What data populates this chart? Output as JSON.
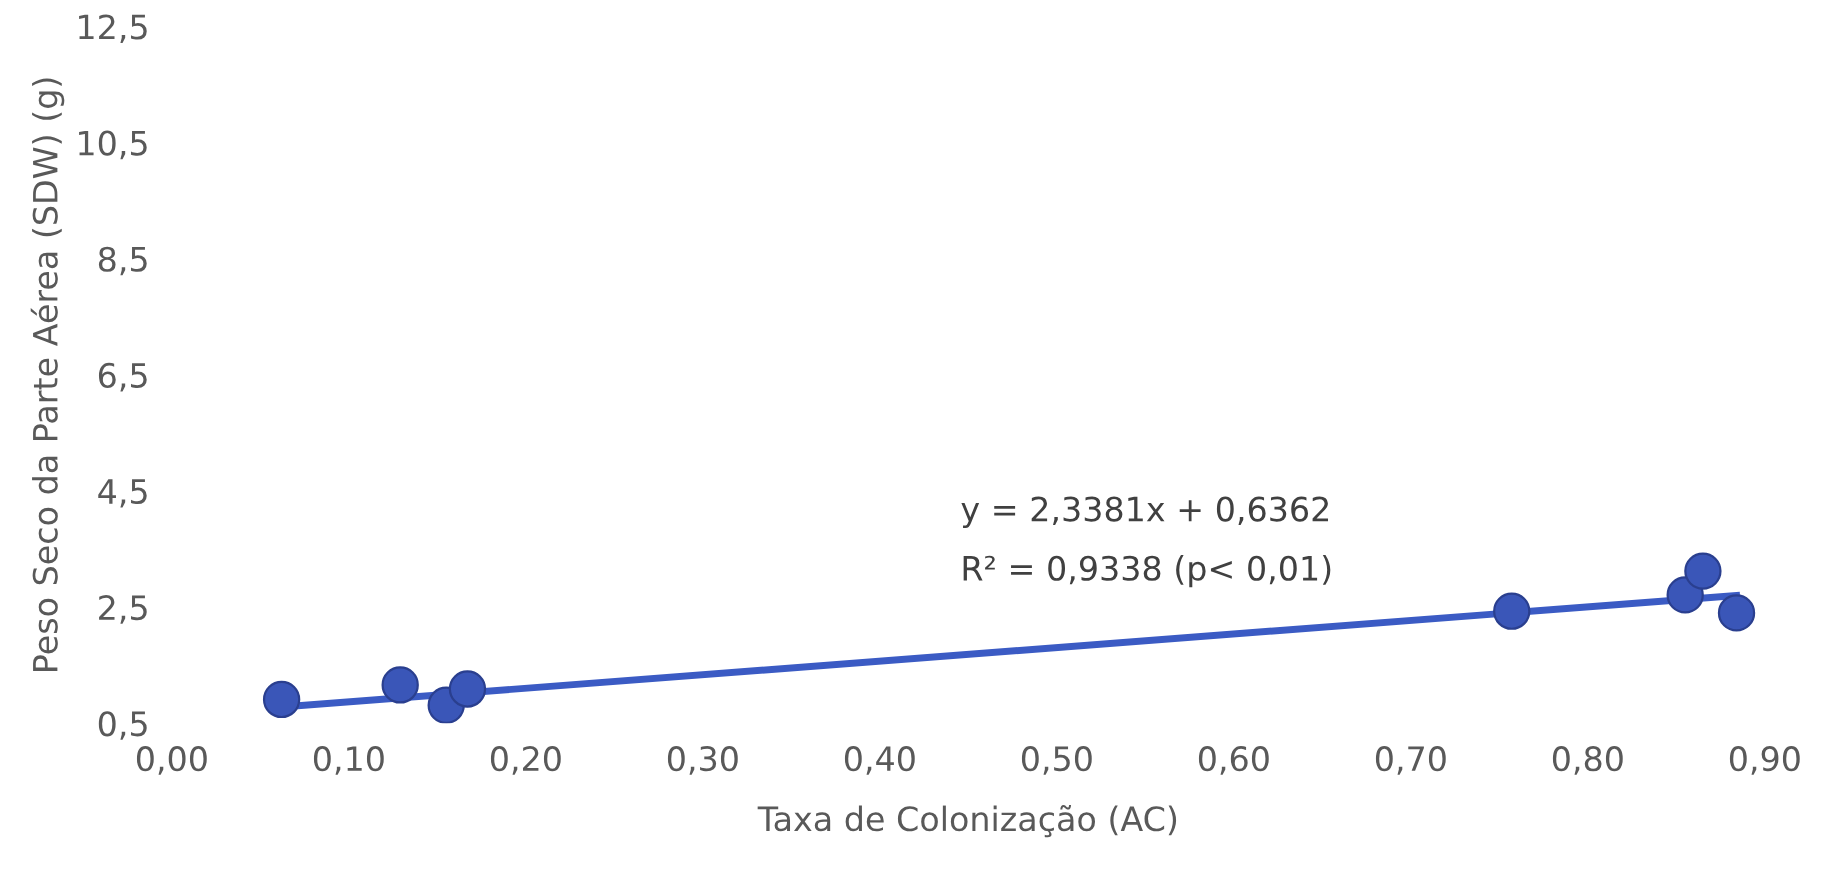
{
  "chart_data": {
    "type": "scatter",
    "xlabel": "Taxa de Colonização (AC)",
    "ylabel": "Peso Seco da Parte Aérea (SDW) (g)",
    "series": [
      {
        "color": "#3a56b8",
        "marker": "circle",
        "x": [
          0.062,
          0.129,
          0.155,
          0.167,
          0.757,
          0.855,
          0.865,
          0.884
        ],
        "values": [
          0.91,
          1.16,
          0.81,
          1.09,
          2.43,
          2.71,
          3.12,
          2.4
        ]
      },
      {
        "type": "line",
        "color": "#3b5bc4",
        "marker": "none",
        "x": [
          0.062,
          0.884
        ],
        "values": [
          0.78,
          2.7
        ]
      }
    ],
    "annotations": [
      "y = 2,3381x + 0,6362",
      "R² = 0,9338 (p< 0,01)"
    ],
    "xlim": [
      0.0,
      0.9
    ],
    "xticks": [
      {
        "value": 0,
        "label": "0,00"
      },
      {
        "value": 0.1,
        "label": "0,10"
      },
      {
        "value": 0.2,
        "label": "0,20"
      },
      {
        "value": 0.3,
        "label": "0,30"
      },
      {
        "value": 0.4,
        "label": "0,40"
      },
      {
        "value": 0.5,
        "label": "0,50"
      },
      {
        "value": 0.6,
        "label": "0,60"
      },
      {
        "value": 0.7,
        "label": "0,70"
      },
      {
        "value": 0.8,
        "label": "0,80"
      },
      {
        "value": 0.9,
        "label": "0,90"
      }
    ],
    "ylim": [
      0.5,
      12.5
    ],
    "yticks": [
      {
        "value": 0.5,
        "label": "0,5"
      },
      {
        "value": 2.5,
        "label": "2,5"
      },
      {
        "value": 4.5,
        "label": "4,5"
      },
      {
        "value": 6.5,
        "label": "6,5"
      },
      {
        "value": 8.5,
        "label": "8,5"
      },
      {
        "value": 10.5,
        "label": "10,5"
      },
      {
        "value": 12.5,
        "label": "12,5"
      }
    ],
    "grid": false
  }
}
